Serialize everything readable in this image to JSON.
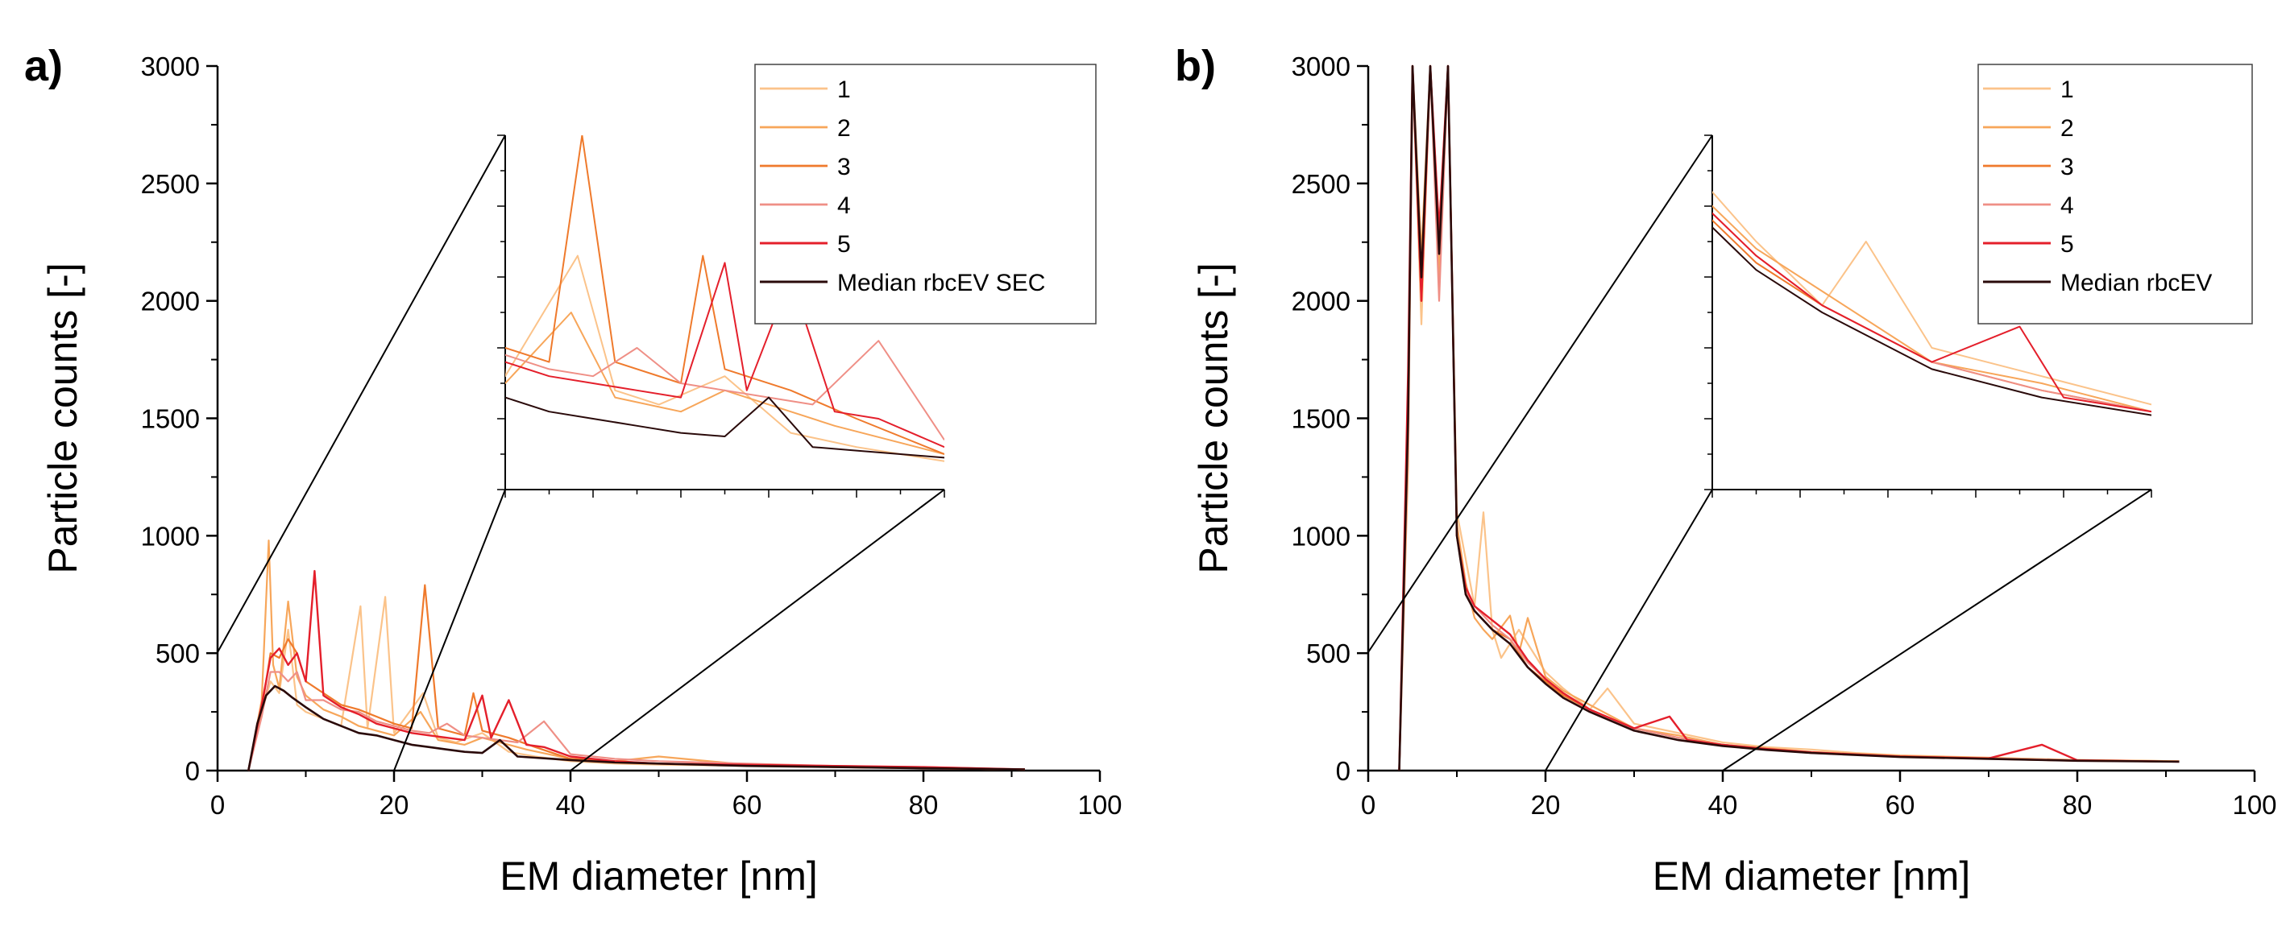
{
  "colors": {
    "s1": "#fbc38a",
    "s2": "#f7a65a",
    "s3": "#ef7a2c",
    "s4": "#ef8f86",
    "s5": "#e41f2b",
    "median": "#2a0a0a"
  },
  "panels": [
    {
      "label": "a)",
      "legend": [
        "1",
        "2",
        "3",
        "4",
        "5",
        "Median rbcEV SEC"
      ]
    },
    {
      "label": "b)",
      "legend": [
        "1",
        "2",
        "3",
        "4",
        "5",
        "Median rbcEV"
      ]
    }
  ],
  "chart_data": [
    {
      "type": "line",
      "title": "",
      "xlabel": "EM diameter [nm]",
      "ylabel": "Particle counts [-]",
      "xlim": [
        0,
        100
      ],
      "ylim": [
        0,
        3000
      ],
      "xticks": [
        "0",
        "20",
        "40",
        "60",
        "80",
        "100"
      ],
      "yticks": [
        "0",
        "500",
        "1000",
        "1500",
        "2000",
        "2500",
        "3000"
      ],
      "series": [
        {
          "name": "1",
          "x": [
            3.5,
            5,
            6,
            7,
            8,
            9,
            10,
            12,
            14,
            16.2,
            17,
            19,
            20,
            23.3,
            25,
            27,
            30,
            33,
            36,
            40,
            45,
            50,
            60,
            70,
            80,
            91.5
          ],
          "values": [
            0,
            250,
            380,
            330,
            600,
            280,
            250,
            220,
            190,
            700,
            180,
            740,
            160,
            330,
            140,
            120,
            160,
            80,
            60,
            40,
            30,
            25,
            20,
            15,
            10,
            5
          ]
        },
        {
          "name": "2",
          "x": [
            3.5,
            5,
            5.8,
            6.3,
            7,
            8,
            9,
            10,
            12,
            14,
            16,
            18,
            20,
            23,
            25,
            28,
            30,
            33,
            35,
            40,
            45,
            50,
            60,
            70,
            80,
            91.5
          ],
          "values": [
            0,
            300,
            980,
            450,
            350,
            720,
            400,
            320,
            260,
            230,
            190,
            170,
            150,
            250,
            130,
            110,
            140,
            110,
            90,
            50,
            40,
            60,
            25,
            15,
            10,
            5
          ]
        },
        {
          "name": "3",
          "x": [
            3.5,
            5,
            6,
            7,
            8,
            9,
            10,
            12,
            14,
            16,
            18,
            20,
            22,
            23.5,
            25,
            28,
            29,
            30,
            33,
            36,
            40,
            45,
            50,
            60,
            70,
            80,
            91.5
          ],
          "values": [
            0,
            260,
            500,
            480,
            560,
            500,
            380,
            330,
            280,
            260,
            230,
            200,
            180,
            790,
            180,
            150,
            330,
            170,
            140,
            100,
            50,
            40,
            30,
            25,
            15,
            10,
            5
          ]
        },
        {
          "name": "4",
          "x": [
            3.5,
            5,
            6,
            7,
            8,
            9,
            10,
            12,
            14,
            16,
            18,
            20,
            22,
            24,
            26,
            28,
            30,
            32,
            34,
            37,
            40,
            45,
            50,
            60,
            70,
            80,
            91.5
          ],
          "values": [
            0,
            230,
            420,
            420,
            380,
            420,
            300,
            300,
            260,
            250,
            210,
            190,
            170,
            160,
            200,
            150,
            140,
            130,
            120,
            210,
            70,
            50,
            40,
            30,
            20,
            15,
            5
          ]
        },
        {
          "name": "5",
          "x": [
            3.5,
            5,
            6,
            7,
            8,
            9,
            10,
            11,
            12,
            14,
            16,
            18,
            20,
            22,
            24,
            26,
            28,
            30,
            31,
            33,
            35,
            37,
            40,
            45,
            50,
            60,
            70,
            80,
            91.5
          ],
          "values": [
            0,
            280,
            480,
            520,
            450,
            500,
            380,
            850,
            320,
            270,
            240,
            200,
            180,
            160,
            150,
            140,
            130,
            320,
            140,
            300,
            110,
            100,
            60,
            40,
            30,
            25,
            20,
            15,
            5
          ]
        },
        {
          "name": "Median rbcEV SEC",
          "x": [
            3.5,
            4.5,
            5.5,
            6.5,
            7.5,
            8.5,
            10,
            12,
            14,
            16,
            18,
            20,
            22,
            24,
            26,
            28,
            30,
            32,
            34,
            36,
            38,
            40,
            45,
            50,
            55,
            60,
            70,
            80,
            91.5
          ],
          "values": [
            0,
            200,
            320,
            360,
            340,
            310,
            270,
            220,
            190,
            160,
            150,
            130,
            110,
            100,
            90,
            80,
            75,
            130,
            60,
            55,
            50,
            45,
            35,
            30,
            25,
            20,
            15,
            10,
            5
          ]
        }
      ],
      "inset": {
        "xlim": [
          20,
          40
        ],
        "ylim": [
          0,
          500
        ]
      }
    },
    {
      "type": "line",
      "title": "",
      "xlabel": "EM diameter [nm]",
      "ylabel": "Particle counts [-]",
      "xlim": [
        0,
        100
      ],
      "ylim": [
        0,
        3000
      ],
      "xticks": [
        "0",
        "20",
        "40",
        "60",
        "80",
        "100"
      ],
      "yticks": [
        "0",
        "500",
        "1000",
        "1500",
        "2000",
        "2500",
        "3000"
      ],
      "series": [
        {
          "name": "1",
          "x": [
            3.5,
            4.5,
            5,
            6,
            7,
            8,
            9,
            10,
            11,
            12,
            13,
            14,
            15,
            17,
            20,
            22,
            25,
            27,
            30,
            35,
            40,
            45,
            50,
            55,
            60,
            70,
            80,
            91.5
          ],
          "values": [
            0,
            1500,
            3000,
            1900,
            3000,
            2300,
            3000,
            1100,
            900,
            700,
            1100,
            600,
            480,
            600,
            420,
            350,
            260,
            350,
            200,
            160,
            120,
            100,
            90,
            75,
            65,
            55,
            45,
            40
          ]
        },
        {
          "name": "2",
          "x": [
            3.5,
            4.5,
            5,
            6,
            7,
            8,
            9,
            10,
            11,
            12,
            13,
            14,
            16,
            17,
            18,
            20,
            22,
            25,
            30,
            35,
            40,
            45,
            50,
            60,
            70,
            80,
            91.5
          ],
          "values": [
            0,
            1300,
            3000,
            2200,
            3000,
            2100,
            3000,
            1050,
            800,
            650,
            600,
            560,
            660,
            500,
            650,
            400,
            340,
            280,
            180,
            150,
            110,
            95,
            80,
            62,
            55,
            45,
            40
          ]
        },
        {
          "name": "3",
          "x": [
            3.5,
            4.5,
            5,
            6,
            7,
            8,
            9,
            10,
            11,
            12,
            14,
            16,
            18,
            20,
            22,
            25,
            30,
            35,
            40,
            45,
            50,
            60,
            70,
            80,
            91.5
          ],
          "values": [
            0,
            1600,
            3000,
            2000,
            3000,
            2200,
            3000,
            1000,
            750,
            680,
            600,
            560,
            440,
            380,
            320,
            260,
            180,
            140,
            110,
            90,
            75,
            60,
            50,
            42,
            38
          ]
        },
        {
          "name": "4",
          "x": [
            3.5,
            4.5,
            5,
            6,
            7,
            8,
            9,
            10,
            11,
            12,
            14,
            16,
            18,
            20,
            22,
            25,
            30,
            35,
            40,
            45,
            50,
            60,
            70,
            80,
            91.5
          ],
          "values": [
            0,
            1400,
            3000,
            2100,
            3000,
            2000,
            3000,
            1000,
            760,
            700,
            620,
            560,
            460,
            390,
            330,
            260,
            180,
            140,
            110,
            92,
            78,
            60,
            52,
            44,
            38
          ]
        },
        {
          "name": "5",
          "x": [
            3.5,
            4.5,
            5,
            6,
            7,
            8,
            9,
            10,
            11,
            12,
            14,
            16,
            18,
            20,
            22,
            25,
            30,
            34,
            36,
            40,
            45,
            50,
            60,
            70,
            76,
            80,
            91.5
          ],
          "values": [
            0,
            1700,
            3000,
            2000,
            3000,
            2300,
            3000,
            1000,
            780,
            700,
            640,
            580,
            470,
            390,
            330,
            260,
            180,
            230,
            130,
            110,
            92,
            78,
            60,
            52,
            110,
            44,
            38
          ]
        },
        {
          "name": "Median rbcEV",
          "x": [
            3.5,
            4.5,
            5,
            6,
            7,
            8,
            9,
            10,
            11,
            12,
            14,
            16,
            18,
            20,
            22,
            25,
            30,
            35,
            40,
            45,
            50,
            60,
            70,
            80,
            91.5
          ],
          "values": [
            0,
            1500,
            3000,
            2100,
            3000,
            2200,
            3000,
            1000,
            750,
            680,
            600,
            540,
            440,
            370,
            310,
            250,
            170,
            130,
            105,
            88,
            75,
            58,
            50,
            42,
            38
          ]
        }
      ],
      "inset": {
        "xlim": [
          20,
          40
        ],
        "ylim": [
          0,
          500
        ]
      }
    }
  ]
}
